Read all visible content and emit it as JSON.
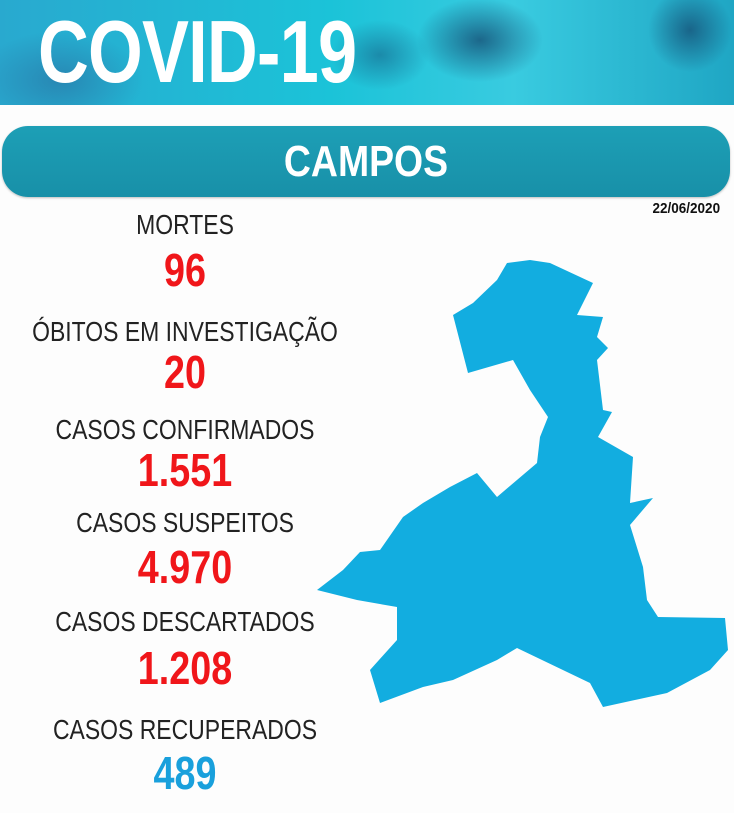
{
  "header": {
    "title": "COVID-19",
    "city": "CAMPOS",
    "date": "22/06/2020"
  },
  "colors": {
    "death_red": "#f0161a",
    "recovered_blue": "#19a0dc",
    "bar_teal": "#1d9fb6",
    "map_blue": "#12ade0"
  },
  "stats": [
    {
      "label": "MORTES",
      "value": "96"
    },
    {
      "label": "ÓBITOS EM INVESTIGAÇÃO",
      "value": "20"
    },
    {
      "label": "CASOS CONFIRMADOS",
      "value": "1.551"
    },
    {
      "label": "CASOS SUSPEITOS",
      "value": "4.970"
    },
    {
      "label": "CASOS DESCARTADOS",
      "value": "1.208"
    },
    {
      "label": "CASOS RECUPERADOS",
      "value": "489"
    }
  ],
  "map": {
    "region": "Campos municipality outline"
  }
}
